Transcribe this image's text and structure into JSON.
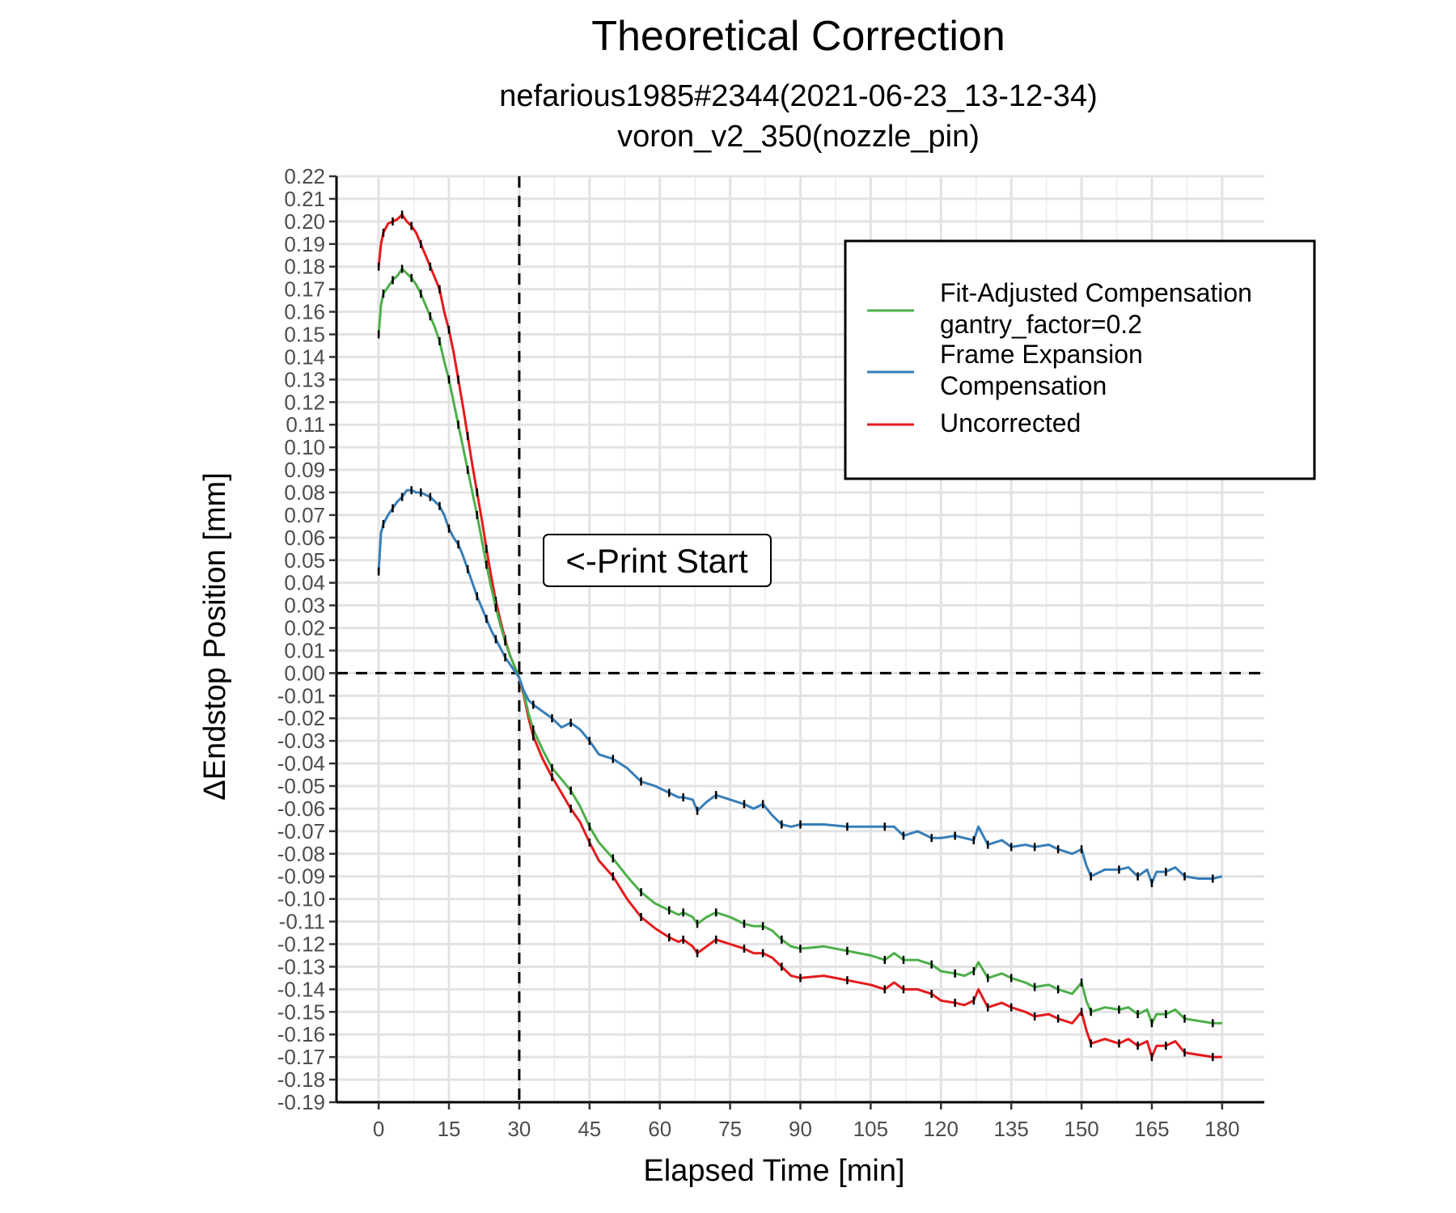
{
  "chart_data": {
    "type": "line",
    "title": "Theoretical Correction",
    "subtitle_lines": [
      "nefarious1985#2344(2021-06-23_13-12-34)",
      "voron_v2_350(nozzle_pin)"
    ],
    "xlabel": "Elapsed Time [min]",
    "ylabel": "ΔEndstop Position [mm]",
    "xlim": [
      -9,
      189
    ],
    "ylim": [
      -0.19,
      0.22
    ],
    "xticks": [
      0,
      15,
      30,
      45,
      60,
      75,
      90,
      105,
      120,
      135,
      150,
      165,
      180
    ],
    "xtick_labels": [
      "0",
      "15",
      "30",
      "45",
      "60",
      "75",
      "90",
      "105",
      "120",
      "135",
      "150",
      "165",
      "180"
    ],
    "yticks": [
      0.22,
      0.21,
      0.2,
      0.19,
      0.18,
      0.17,
      0.16,
      0.15,
      0.14,
      0.13,
      0.12,
      0.11,
      0.1,
      0.09,
      0.08,
      0.07,
      0.06,
      0.05,
      0.04,
      0.03,
      0.02,
      0.01,
      0.0,
      -0.01,
      -0.02,
      -0.03,
      -0.04,
      -0.05,
      -0.06,
      -0.07,
      -0.08,
      -0.09,
      -0.1,
      -0.11,
      -0.12,
      -0.13,
      -0.14,
      -0.15,
      -0.16,
      -0.17,
      -0.18,
      -0.19
    ],
    "ytick_labels": [
      "0.22",
      "0.21",
      "0.20",
      "0.19",
      "0.18",
      "0.17",
      "0.16",
      "0.15",
      "0.14",
      "0.13",
      "0.12",
      "0.11",
      "0.10",
      "0.09",
      "0.08",
      "0.07",
      "0.06",
      "0.05",
      "0.04",
      "0.03",
      "0.02",
      "0.01",
      "0.00",
      "-0.01",
      "-0.02",
      "-0.03",
      "-0.04",
      "-0.05",
      "-0.06",
      "-0.07",
      "-0.08",
      "-0.09",
      "-0.10",
      "-0.11",
      "-0.12",
      "-0.13",
      "-0.14",
      "-0.15",
      "-0.16",
      "-0.17",
      "-0.18",
      "-0.19"
    ],
    "grid": true,
    "reference_lines": {
      "vertical_x": 30,
      "horizontal_y": 0.0,
      "style": "dashed"
    },
    "annotation": {
      "text": "<-Print Start",
      "x": 30,
      "y": 0.05
    },
    "legend": {
      "position": "top-right",
      "entries": [
        {
          "line1": "Fit-Adjusted Compensation",
          "line2": "gantry_factor=0.2",
          "color": "#4daf4a"
        },
        {
          "line1": "Frame Expansion",
          "line2": "Compensation",
          "color": "#377eb8"
        },
        {
          "line1": "Uncorrected",
          "line2": "",
          "color": "#e41a1c"
        }
      ]
    },
    "series": [
      {
        "color": "#e41a1c",
        "x": [
          0,
          0.5,
          1,
          2,
          3,
          4,
          5,
          6,
          7,
          8,
          9,
          10,
          11,
          12,
          13,
          14,
          15,
          16,
          17,
          18,
          19,
          20,
          21,
          22,
          23,
          24,
          25,
          26,
          27,
          28,
          29,
          30,
          31,
          32,
          33,
          35,
          37,
          39,
          41,
          43,
          45,
          47,
          50,
          53,
          56,
          59,
          62,
          64,
          65,
          67,
          68,
          70,
          72,
          75,
          78,
          80,
          82,
          84,
          86,
          88,
          90,
          95,
          100,
          105,
          108,
          110,
          112,
          115,
          118,
          120,
          123,
          125,
          127,
          128,
          130,
          133,
          135,
          138,
          140,
          143,
          145,
          148,
          150,
          151,
          152,
          155,
          158,
          160,
          162,
          164,
          165,
          166,
          168,
          170,
          172,
          175,
          178,
          180
        ],
        "y": [
          0.18,
          0.19,
          0.195,
          0.199,
          0.2,
          0.201,
          0.203,
          0.2,
          0.198,
          0.195,
          0.19,
          0.185,
          0.18,
          0.175,
          0.17,
          0.16,
          0.152,
          0.142,
          0.13,
          0.118,
          0.105,
          0.092,
          0.08,
          0.068,
          0.055,
          0.043,
          0.032,
          0.023,
          0.015,
          0.008,
          0.003,
          -0.002,
          -0.01,
          -0.02,
          -0.028,
          -0.038,
          -0.046,
          -0.053,
          -0.06,
          -0.066,
          -0.075,
          -0.083,
          -0.09,
          -0.1,
          -0.108,
          -0.113,
          -0.117,
          -0.119,
          -0.118,
          -0.121,
          -0.124,
          -0.121,
          -0.118,
          -0.12,
          -0.122,
          -0.124,
          -0.124,
          -0.126,
          -0.13,
          -0.134,
          -0.135,
          -0.134,
          -0.136,
          -0.138,
          -0.14,
          -0.137,
          -0.14,
          -0.14,
          -0.142,
          -0.145,
          -0.146,
          -0.147,
          -0.145,
          -0.14,
          -0.148,
          -0.146,
          -0.148,
          -0.15,
          -0.152,
          -0.151,
          -0.153,
          -0.155,
          -0.15,
          -0.158,
          -0.164,
          -0.162,
          -0.164,
          -0.162,
          -0.165,
          -0.163,
          -0.17,
          -0.165,
          -0.165,
          -0.163,
          -0.168,
          -0.169,
          -0.17,
          -0.17
        ]
      },
      {
        "color": "#4daf4a",
        "x": [
          0,
          0.5,
          1,
          2,
          3,
          4,
          5,
          6,
          7,
          8,
          9,
          10,
          11,
          12,
          13,
          14,
          15,
          16,
          17,
          18,
          19,
          20,
          21,
          22,
          23,
          24,
          25,
          26,
          27,
          28,
          29,
          30,
          31,
          32,
          33,
          35,
          37,
          39,
          41,
          43,
          45,
          47,
          50,
          53,
          56,
          59,
          62,
          64,
          65,
          67,
          68,
          70,
          72,
          75,
          78,
          80,
          82,
          84,
          86,
          88,
          90,
          95,
          100,
          105,
          108,
          110,
          112,
          115,
          118,
          120,
          123,
          125,
          127,
          128,
          130,
          133,
          135,
          138,
          140,
          143,
          145,
          148,
          150,
          151,
          152,
          155,
          158,
          160,
          162,
          164,
          165,
          166,
          168,
          170,
          172,
          175,
          178,
          180
        ],
        "y": [
          0.15,
          0.163,
          0.168,
          0.171,
          0.174,
          0.176,
          0.179,
          0.177,
          0.175,
          0.172,
          0.168,
          0.163,
          0.158,
          0.153,
          0.147,
          0.138,
          0.13,
          0.12,
          0.11,
          0.1,
          0.09,
          0.08,
          0.07,
          0.059,
          0.048,
          0.038,
          0.029,
          0.021,
          0.014,
          0.008,
          0.003,
          -0.002,
          -0.009,
          -0.018,
          -0.025,
          -0.034,
          -0.042,
          -0.047,
          -0.052,
          -0.059,
          -0.068,
          -0.075,
          -0.082,
          -0.09,
          -0.097,
          -0.102,
          -0.105,
          -0.107,
          -0.106,
          -0.108,
          -0.111,
          -0.108,
          -0.106,
          -0.108,
          -0.111,
          -0.112,
          -0.112,
          -0.114,
          -0.118,
          -0.121,
          -0.122,
          -0.121,
          -0.123,
          -0.125,
          -0.127,
          -0.124,
          -0.127,
          -0.127,
          -0.129,
          -0.132,
          -0.133,
          -0.134,
          -0.132,
          -0.128,
          -0.135,
          -0.133,
          -0.135,
          -0.137,
          -0.139,
          -0.138,
          -0.14,
          -0.142,
          -0.137,
          -0.145,
          -0.15,
          -0.148,
          -0.149,
          -0.148,
          -0.151,
          -0.149,
          -0.155,
          -0.151,
          -0.151,
          -0.149,
          -0.153,
          -0.154,
          -0.155,
          -0.155
        ]
      },
      {
        "color": "#377eb8",
        "x": [
          0,
          0.5,
          1,
          2,
          3,
          4,
          5,
          6,
          7,
          8,
          9,
          10,
          11,
          12,
          13,
          14,
          15,
          16,
          17,
          18,
          19,
          20,
          21,
          22,
          23,
          24,
          25,
          26,
          27,
          28,
          29,
          30,
          31,
          32,
          33,
          35,
          37,
          39,
          41,
          43,
          45,
          47,
          50,
          53,
          56,
          59,
          62,
          64,
          65,
          67,
          68,
          70,
          72,
          75,
          78,
          80,
          82,
          84,
          86,
          88,
          90,
          95,
          100,
          105,
          108,
          110,
          112,
          115,
          118,
          120,
          123,
          125,
          127,
          128,
          130,
          133,
          135,
          138,
          140,
          143,
          145,
          148,
          150,
          151,
          152,
          155,
          158,
          160,
          162,
          164,
          165,
          166,
          168,
          170,
          172,
          175,
          178,
          180
        ],
        "y": [
          0.045,
          0.062,
          0.066,
          0.07,
          0.073,
          0.076,
          0.078,
          0.081,
          0.081,
          0.08,
          0.08,
          0.079,
          0.078,
          0.076,
          0.074,
          0.07,
          0.064,
          0.06,
          0.057,
          0.052,
          0.046,
          0.04,
          0.034,
          0.029,
          0.024,
          0.019,
          0.015,
          0.011,
          0.007,
          0.004,
          0.001,
          -0.002,
          -0.008,
          -0.012,
          -0.014,
          -0.017,
          -0.02,
          -0.024,
          -0.022,
          -0.025,
          -0.03,
          -0.036,
          -0.038,
          -0.042,
          -0.048,
          -0.05,
          -0.053,
          -0.055,
          -0.055,
          -0.056,
          -0.061,
          -0.057,
          -0.054,
          -0.056,
          -0.058,
          -0.06,
          -0.058,
          -0.063,
          -0.067,
          -0.068,
          -0.067,
          -0.067,
          -0.068,
          -0.068,
          -0.068,
          -0.068,
          -0.072,
          -0.07,
          -0.073,
          -0.073,
          -0.072,
          -0.073,
          -0.074,
          -0.068,
          -0.076,
          -0.074,
          -0.077,
          -0.076,
          -0.077,
          -0.076,
          -0.078,
          -0.08,
          -0.078,
          -0.085,
          -0.09,
          -0.087,
          -0.087,
          -0.086,
          -0.09,
          -0.087,
          -0.093,
          -0.088,
          -0.088,
          -0.086,
          -0.09,
          -0.091,
          -0.091,
          -0.09
        ]
      }
    ]
  }
}
